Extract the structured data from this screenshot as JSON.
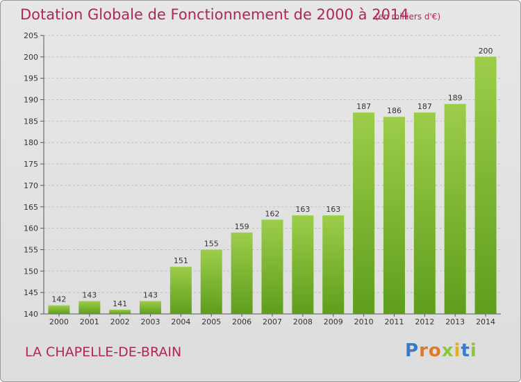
{
  "header": {
    "title": "Dotation Globale de Fonctionnement de 2000 à 2014",
    "unit_note": "(en milliers d'€)"
  },
  "footer": {
    "place_name": "LA CHAPELLE-DE-BRAIN",
    "logo_text": "Proxiti"
  },
  "colors": {
    "title": "#b0274f",
    "bar_light": "#9ccd4a",
    "bar_dark": "#5e9e1c",
    "grid": "#bfbfbf"
  },
  "chart_data": {
    "type": "bar",
    "title": "Dotation Globale de Fonctionnement de 2000 à 2014",
    "subtitle": "(en milliers d'€)",
    "xlabel": "",
    "ylabel": "",
    "categories": [
      "2000",
      "2001",
      "2002",
      "2003",
      "2004",
      "2005",
      "2006",
      "2007",
      "2008",
      "2009",
      "2010",
      "2011",
      "2012",
      "2013",
      "2014"
    ],
    "values": [
      142,
      143,
      141,
      143,
      151,
      155,
      159,
      162,
      163,
      163,
      187,
      186,
      187,
      189,
      200
    ],
    "ylim": [
      140,
      205
    ],
    "yticks": [
      140,
      145,
      150,
      155,
      160,
      165,
      170,
      175,
      180,
      185,
      190,
      195,
      200,
      205
    ],
    "grid": "horizontal dashed",
    "legend": "none"
  }
}
